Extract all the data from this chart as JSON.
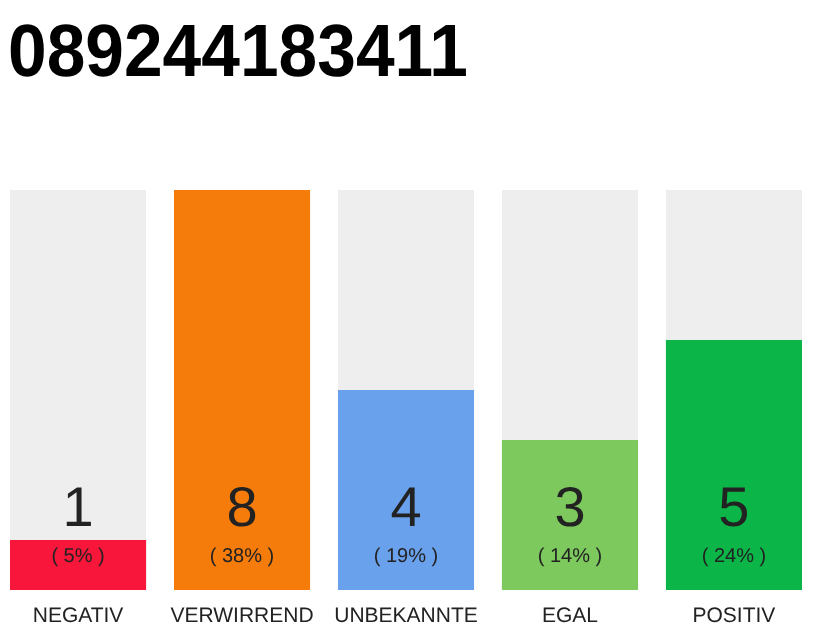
{
  "chart_data": {
    "type": "bar",
    "title": "089244183411",
    "categories": [
      "NEGATIV",
      "VERWIRREND",
      "UNBEKANNTE",
      "EGAL",
      "POSITIV"
    ],
    "values": [
      1,
      8,
      4,
      3,
      5
    ],
    "colors": [
      "#f8173a",
      "#f57c0a",
      "#6aa1ec",
      "#7dc95e",
      "#0bb548"
    ],
    "ylim": [
      0,
      8
    ],
    "tick_labels": "x",
    "data_labels": true,
    "annotations": [
      "( 5% )",
      "( 38% )",
      "( 19% )",
      "( 14% )",
      "( 24% )"
    ]
  }
}
